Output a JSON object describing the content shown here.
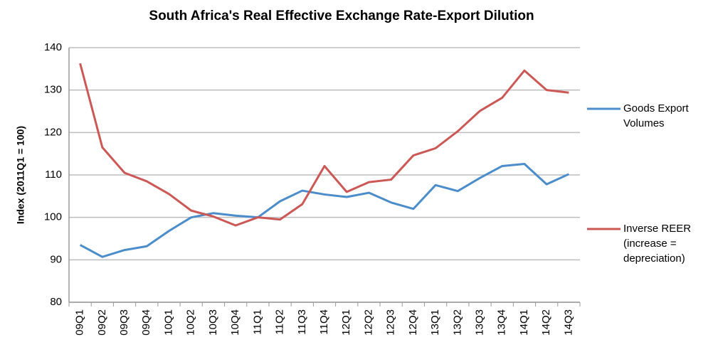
{
  "chart_data": {
    "type": "line",
    "title": "South Africa's Real Effective Exchange Rate-Export Dilution",
    "y_label": "Index (2011Q1 = 100)",
    "categories": [
      "09Q1",
      "09Q2",
      "09Q3",
      "09Q4",
      "10Q1",
      "10Q2",
      "10Q3",
      "10Q4",
      "11Q1",
      "11Q2",
      "11Q3",
      "11Q4",
      "12Q1",
      "12Q2",
      "12Q3",
      "12Q4",
      "13Q1",
      "13Q2",
      "13Q3",
      "13Q4",
      "14Q1",
      "14Q2",
      "14Q3"
    ],
    "series": [
      {
        "name": "Goods Export Volumes",
        "color": "#4b8ccb",
        "values": [
          93.5,
          90.7,
          92.3,
          93.2,
          96.8,
          100.0,
          101.0,
          100.4,
          100.0,
          103.8,
          106.3,
          105.4,
          104.8,
          105.8,
          103.5,
          102.0,
          107.6,
          106.2,
          109.3,
          112.1,
          112.6,
          107.8,
          110.2
        ]
      },
      {
        "name": "Inverse REER (increase = depreciation)",
        "color": "#cc5856",
        "values": [
          136.3,
          116.5,
          110.5,
          108.5,
          105.5,
          101.6,
          100.2,
          98.1,
          100.0,
          99.5,
          103.1,
          112.1,
          106.0,
          108.3,
          108.9,
          114.6,
          116.3,
          120.3,
          125.1,
          128.2,
          134.6,
          130.0,
          129.4
        ]
      }
    ],
    "ylim": [
      80,
      140
    ],
    "yticks": [
      80,
      90,
      100,
      110,
      120,
      130,
      140
    ],
    "grid": true
  }
}
